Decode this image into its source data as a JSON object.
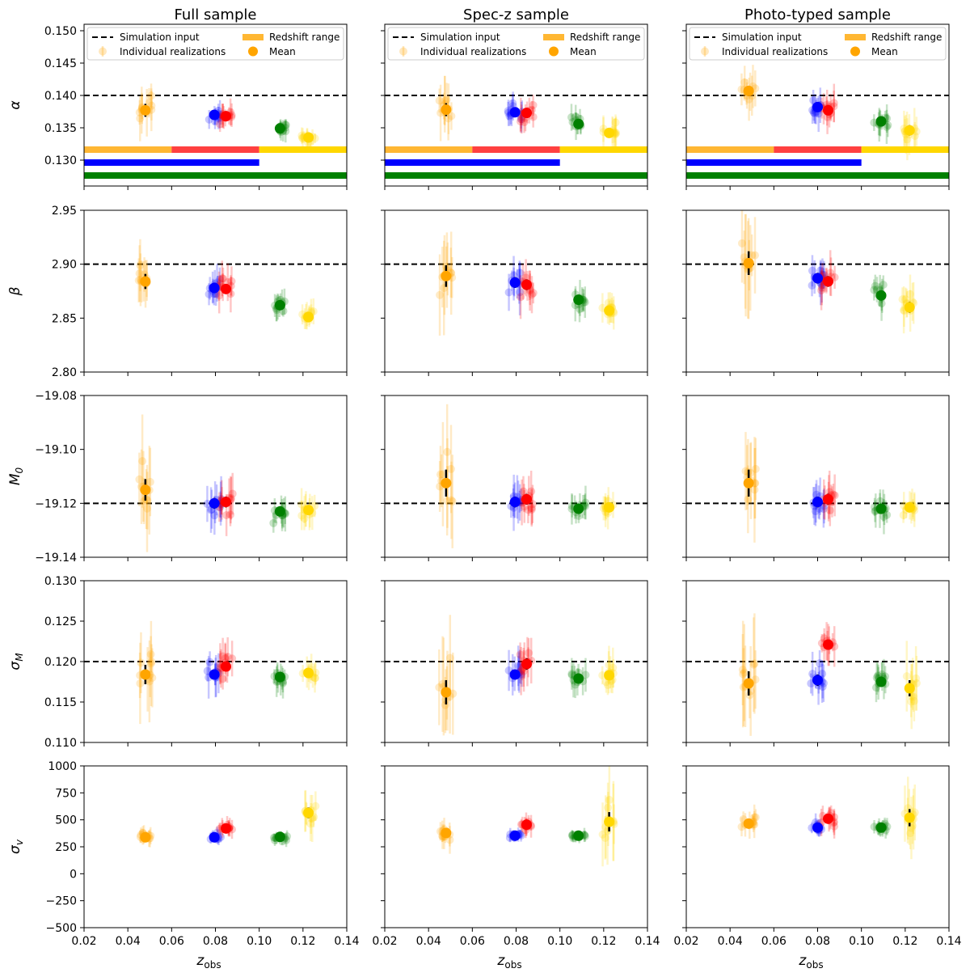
{
  "columns": [
    "Full sample",
    "Spec-z sample",
    "Photo-typed sample"
  ],
  "legend": {
    "simulation_input": "Simulation input",
    "individual_realizations": "Individual realizations",
    "redshift_range": "Redshift range",
    "mean": "Mean"
  },
  "colors": {
    "orange": "#FFA500",
    "blue": "#0000FF",
    "red": "#FF0000",
    "green": "#008000",
    "gold": "#FFD700"
  },
  "chart_data": {
    "type": "scatter",
    "title": "",
    "xlabel": "z",
    "xlabel_sub": "obs",
    "xlim": [
      0.02,
      0.14
    ],
    "xticks": [
      "0.02",
      "0.04",
      "0.06",
      "0.08",
      "0.10",
      "0.12",
      "0.14"
    ],
    "redshift_ranges": [
      {
        "color": "orange",
        "range": [
          0.02,
          0.06
        ],
        "row": 0
      },
      {
        "color": "red",
        "range": [
          0.06,
          0.1
        ],
        "row": 0
      },
      {
        "color": "gold",
        "range": [
          0.1,
          0.14
        ],
        "row": 0
      },
      {
        "color": "blue",
        "range": [
          0.02,
          0.1
        ],
        "row": 1
      },
      {
        "color": "green",
        "range": [
          0.02,
          0.14
        ],
        "row": 2
      }
    ],
    "rows": [
      {
        "param": "α",
        "label_main": "α",
        "label_sub": "",
        "ylim": [
          0.126,
          0.151
        ],
        "yticks": [
          "0.130",
          "0.135",
          "0.140",
          "0.145",
          "0.150"
        ],
        "truth": 0.14,
        "has_legend": true,
        "panels": [
          {
            "means": [
              {
                "color": "orange",
                "x": 0.048,
                "y": 0.1377,
                "err": 0.001
              },
              {
                "color": "blue",
                "x": 0.0795,
                "y": 0.137,
                "err": 0.0005
              },
              {
                "color": "red",
                "x": 0.0848,
                "y": 0.1368,
                "err": 0.0005
              },
              {
                "color": "green",
                "x": 0.1095,
                "y": 0.1349,
                "err": 0.0004
              },
              {
                "color": "gold",
                "x": 0.1225,
                "y": 0.1335,
                "err": 0.0004
              }
            ]
          },
          {
            "means": [
              {
                "color": "orange",
                "x": 0.048,
                "y": 0.1378,
                "err": 0.001
              },
              {
                "color": "blue",
                "x": 0.0795,
                "y": 0.1374,
                "err": 0.0006
              },
              {
                "color": "red",
                "x": 0.0848,
                "y": 0.1373,
                "err": 0.0006
              },
              {
                "color": "green",
                "x": 0.1085,
                "y": 0.1356,
                "err": 0.0005
              },
              {
                "color": "gold",
                "x": 0.1225,
                "y": 0.1342,
                "err": 0.0006
              }
            ]
          },
          {
            "means": [
              {
                "color": "orange",
                "x": 0.0485,
                "y": 0.1407,
                "err": 0.0008
              },
              {
                "color": "blue",
                "x": 0.08,
                "y": 0.1382,
                "err": 0.0007
              },
              {
                "color": "red",
                "x": 0.0848,
                "y": 0.1377,
                "err": 0.0007
              },
              {
                "color": "green",
                "x": 0.109,
                "y": 0.136,
                "err": 0.0006
              },
              {
                "color": "gold",
                "x": 0.122,
                "y": 0.1346,
                "err": 0.0008
              }
            ]
          }
        ]
      },
      {
        "param": "β",
        "label_main": "β",
        "label_sub": "",
        "ylim": [
          2.8,
          2.95
        ],
        "yticks": [
          "2.80",
          "2.85",
          "2.90",
          "2.95"
        ],
        "truth": 2.9,
        "has_legend": false,
        "panels": [
          {
            "means": [
              {
                "color": "orange",
                "x": 0.048,
                "y": 2.884,
                "err": 0.007
              },
              {
                "color": "blue",
                "x": 0.0795,
                "y": 2.878,
                "err": 0.004
              },
              {
                "color": "red",
                "x": 0.0848,
                "y": 2.877,
                "err": 0.004
              },
              {
                "color": "green",
                "x": 0.1095,
                "y": 2.862,
                "err": 0.003
              },
              {
                "color": "gold",
                "x": 0.1225,
                "y": 2.851,
                "err": 0.003
              }
            ]
          },
          {
            "means": [
              {
                "color": "orange",
                "x": 0.048,
                "y": 2.889,
                "err": 0.01
              },
              {
                "color": "blue",
                "x": 0.0795,
                "y": 2.883,
                "err": 0.005
              },
              {
                "color": "red",
                "x": 0.0848,
                "y": 2.881,
                "err": 0.005
              },
              {
                "color": "green",
                "x": 0.1085,
                "y": 2.867,
                "err": 0.004
              },
              {
                "color": "gold",
                "x": 0.1225,
                "y": 2.857,
                "err": 0.004
              }
            ]
          },
          {
            "means": [
              {
                "color": "orange",
                "x": 0.0485,
                "y": 2.901,
                "err": 0.011
              },
              {
                "color": "blue",
                "x": 0.08,
                "y": 2.887,
                "err": 0.005
              },
              {
                "color": "red",
                "x": 0.0848,
                "y": 2.884,
                "err": 0.005
              },
              {
                "color": "green",
                "x": 0.109,
                "y": 2.871,
                "err": 0.004
              },
              {
                "color": "gold",
                "x": 0.122,
                "y": 2.86,
                "err": 0.005
              }
            ]
          }
        ]
      },
      {
        "param": "M0",
        "label_main": "M",
        "label_sub": "0",
        "ylim": [
          -19.14,
          -19.08
        ],
        "yticks": [
          "−19.14",
          "−19.12",
          "−19.10",
          "−19.08"
        ],
        "truth": -19.12,
        "has_legend": false,
        "panels": [
          {
            "means": [
              {
                "color": "orange",
                "x": 0.048,
                "y": -19.115,
                "err": 0.004
              },
              {
                "color": "blue",
                "x": 0.0795,
                "y": -19.12,
                "err": 0.002
              },
              {
                "color": "red",
                "x": 0.0848,
                "y": -19.1195,
                "err": 0.002
              },
              {
                "color": "green",
                "x": 0.1095,
                "y": -19.123,
                "err": 0.0015
              },
              {
                "color": "gold",
                "x": 0.1225,
                "y": -19.1225,
                "err": 0.0015
              }
            ]
          },
          {
            "means": [
              {
                "color": "orange",
                "x": 0.048,
                "y": -19.1125,
                "err": 0.005
              },
              {
                "color": "blue",
                "x": 0.0795,
                "y": -19.1195,
                "err": 0.002
              },
              {
                "color": "red",
                "x": 0.0848,
                "y": -19.1185,
                "err": 0.002
              },
              {
                "color": "green",
                "x": 0.1085,
                "y": -19.122,
                "err": 0.0015
              },
              {
                "color": "gold",
                "x": 0.1225,
                "y": -19.1215,
                "err": 0.0015
              }
            ]
          },
          {
            "means": [
              {
                "color": "orange",
                "x": 0.0485,
                "y": -19.1125,
                "err": 0.005
              },
              {
                "color": "blue",
                "x": 0.08,
                "y": -19.1195,
                "err": 0.002
              },
              {
                "color": "red",
                "x": 0.0848,
                "y": -19.1185,
                "err": 0.002
              },
              {
                "color": "green",
                "x": 0.109,
                "y": -19.122,
                "err": 0.0015
              },
              {
                "color": "gold",
                "x": 0.122,
                "y": -19.1215,
                "err": 0.0015
              }
            ]
          }
        ]
      },
      {
        "param": "σM",
        "label_main": "σ",
        "label_sub": "M",
        "ylim": [
          0.11,
          0.13
        ],
        "yticks": [
          "0.110",
          "0.115",
          "0.120",
          "0.125",
          "0.130"
        ],
        "truth": 0.12,
        "has_legend": false,
        "panels": [
          {
            "means": [
              {
                "color": "orange",
                "x": 0.048,
                "y": 0.1184,
                "err": 0.0012
              },
              {
                "color": "blue",
                "x": 0.0795,
                "y": 0.1184,
                "err": 0.0006
              },
              {
                "color": "red",
                "x": 0.0848,
                "y": 0.1194,
                "err": 0.0006
              },
              {
                "color": "green",
                "x": 0.1095,
                "y": 0.1181,
                "err": 0.0005
              },
              {
                "color": "gold",
                "x": 0.1225,
                "y": 0.1186,
                "err": 0.0005
              }
            ]
          },
          {
            "means": [
              {
                "color": "orange",
                "x": 0.048,
                "y": 0.1162,
                "err": 0.0015
              },
              {
                "color": "blue",
                "x": 0.0795,
                "y": 0.1184,
                "err": 0.0006
              },
              {
                "color": "red",
                "x": 0.0848,
                "y": 0.1197,
                "err": 0.0007
              },
              {
                "color": "green",
                "x": 0.1085,
                "y": 0.1179,
                "err": 0.0005
              },
              {
                "color": "gold",
                "x": 0.1225,
                "y": 0.1183,
                "err": 0.0006
              }
            ]
          },
          {
            "means": [
              {
                "color": "orange",
                "x": 0.0485,
                "y": 0.1173,
                "err": 0.0015
              },
              {
                "color": "blue",
                "x": 0.08,
                "y": 0.1177,
                "err": 0.0007
              },
              {
                "color": "red",
                "x": 0.0848,
                "y": 0.1221,
                "err": 0.0006
              },
              {
                "color": "green",
                "x": 0.109,
                "y": 0.1175,
                "err": 0.0006
              },
              {
                "color": "gold",
                "x": 0.122,
                "y": 0.1167,
                "err": 0.001
              }
            ]
          }
        ]
      },
      {
        "param": "σv",
        "label_main": "σ",
        "label_sub": "v",
        "ylim": [
          -500,
          1000
        ],
        "yticks": [
          "−500",
          "−250",
          "0",
          "250",
          "500",
          "750",
          "1000"
        ],
        "truth": null,
        "has_legend": false,
        "panels": [
          {
            "means": [
              {
                "color": "orange",
                "x": 0.048,
                "y": 338,
                "err": 20
              },
              {
                "color": "blue",
                "x": 0.0795,
                "y": 338,
                "err": 15
              },
              {
                "color": "red",
                "x": 0.0848,
                "y": 420,
                "err": 20
              },
              {
                "color": "green",
                "x": 0.1095,
                "y": 342,
                "err": 15
              },
              {
                "color": "gold",
                "x": 0.1225,
                "y": 565,
                "err": 50
              }
            ]
          },
          {
            "means": [
              {
                "color": "orange",
                "x": 0.048,
                "y": 378,
                "err": 30
              },
              {
                "color": "blue",
                "x": 0.0795,
                "y": 353,
                "err": 15
              },
              {
                "color": "red",
                "x": 0.0848,
                "y": 455,
                "err": 25
              },
              {
                "color": "green",
                "x": 0.1085,
                "y": 353,
                "err": 15
              },
              {
                "color": "gold",
                "x": 0.1225,
                "y": 482,
                "err": 90
              }
            ]
          },
          {
            "means": [
              {
                "color": "orange",
                "x": 0.0485,
                "y": 465,
                "err": 30
              },
              {
                "color": "blue",
                "x": 0.08,
                "y": 428,
                "err": 20
              },
              {
                "color": "red",
                "x": 0.0848,
                "y": 510,
                "err": 30
              },
              {
                "color": "green",
                "x": 0.109,
                "y": 428,
                "err": 20
              },
              {
                "color": "gold",
                "x": 0.122,
                "y": 520,
                "err": 80
              }
            ]
          }
        ]
      }
    ]
  }
}
